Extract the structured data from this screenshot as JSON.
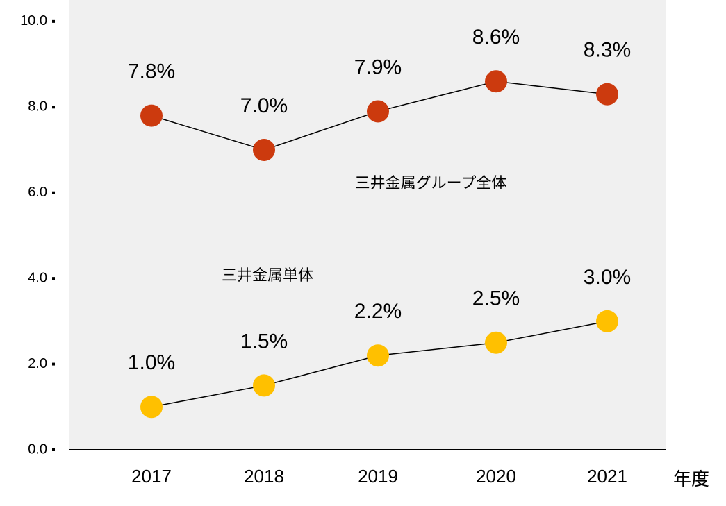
{
  "chart_data": {
    "type": "line",
    "x_label": "年度",
    "categories": [
      "2017",
      "2018",
      "2019",
      "2020",
      "2021"
    ],
    "series": [
      {
        "name": "三井金属グループ全体",
        "color": "#cc3a0e",
        "values": [
          7.8,
          7.0,
          7.9,
          8.6,
          8.3
        ],
        "value_labels": [
          "7.8%",
          "7.0%",
          "7.9%",
          "8.6%",
          "8.3%"
        ]
      },
      {
        "name": "三井金属単体",
        "color": "#ffc000",
        "values": [
          1.0,
          1.5,
          2.2,
          2.5,
          3.0
        ],
        "value_labels": [
          "1.0%",
          "1.5%",
          "2.2%",
          "2.5%",
          "3.0%"
        ]
      }
    ],
    "ylim": [
      0,
      10.5
    ],
    "yticks": [
      {
        "value": 0,
        "label": "0.0"
      },
      {
        "value": 2,
        "label": "2.0"
      },
      {
        "value": 4,
        "label": "4.0"
      },
      {
        "value": 6,
        "label": "6.0"
      },
      {
        "value": 8,
        "label": "8.0"
      },
      {
        "value": 10,
        "label": "10.0"
      }
    ],
    "plot_background": "#f0f0f0"
  }
}
